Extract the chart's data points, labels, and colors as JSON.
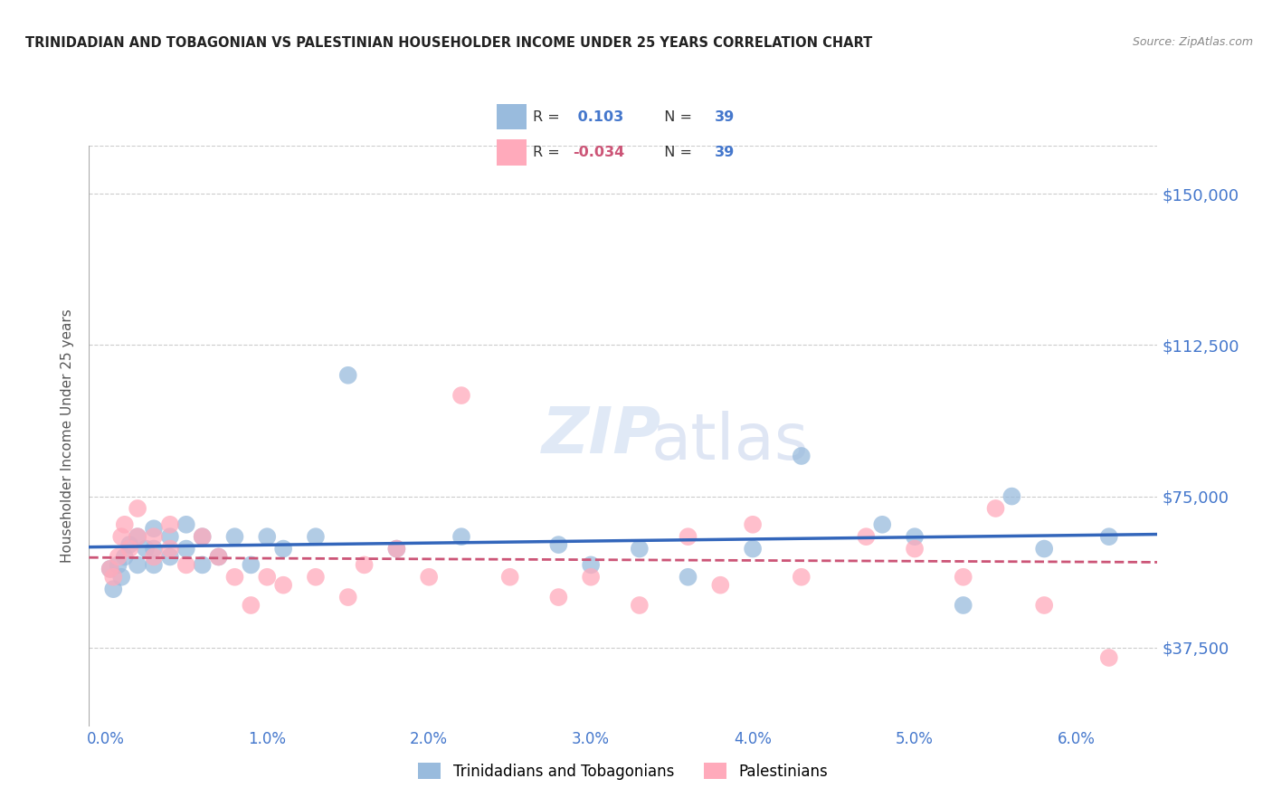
{
  "title": "TRINIDADIAN AND TOBAGONIAN VS PALESTINIAN HOUSEHOLDER INCOME UNDER 25 YEARS CORRELATION CHART",
  "source": "Source: ZipAtlas.com",
  "ylabel": "Householder Income Under 25 years",
  "xlim": [
    -0.001,
    0.065
  ],
  "ylim": [
    18000,
    162000
  ],
  "yticks": [
    37500,
    75000,
    112500,
    150000
  ],
  "ytick_labels": [
    "$37,500",
    "$75,000",
    "$112,500",
    "$150,000"
  ],
  "xticks": [
    0.0,
    0.01,
    0.02,
    0.03,
    0.04,
    0.05,
    0.06
  ],
  "xtick_labels": [
    "0.0%",
    "1.0%",
    "2.0%",
    "3.0%",
    "4.0%",
    "5.0%",
    "6.0%"
  ],
  "watermark_zip": "ZIP",
  "watermark_atlas": "atlas",
  "legend_R1": "0.103",
  "legend_R2": "-0.034",
  "legend_N": "39",
  "legend_label1": "Trinidadians and Tobagonians",
  "legend_label2": "Palestinians",
  "color_blue": "#99BBDD",
  "color_pink": "#FFAABB",
  "line_color_blue": "#3366BB",
  "line_color_pink": "#CC5577",
  "title_color": "#222222",
  "axis_label_color": "#4477CC",
  "ylabel_color": "#555555",
  "grid_color": "#CCCCCC",
  "R1": 0.103,
  "R2": -0.034,
  "N": 39,
  "blue_x": [
    0.0003,
    0.0005,
    0.0008,
    0.001,
    0.0012,
    0.0015,
    0.002,
    0.002,
    0.0025,
    0.003,
    0.003,
    0.003,
    0.004,
    0.004,
    0.005,
    0.005,
    0.006,
    0.006,
    0.007,
    0.008,
    0.009,
    0.01,
    0.011,
    0.013,
    0.015,
    0.018,
    0.022,
    0.028,
    0.03,
    0.033,
    0.036,
    0.04,
    0.043,
    0.048,
    0.05,
    0.053,
    0.056,
    0.058,
    0.062
  ],
  "blue_y": [
    57000,
    52000,
    58000,
    55000,
    60000,
    63000,
    65000,
    58000,
    62000,
    67000,
    62000,
    58000,
    65000,
    60000,
    68000,
    62000,
    65000,
    58000,
    60000,
    65000,
    58000,
    65000,
    62000,
    65000,
    105000,
    62000,
    65000,
    63000,
    58000,
    62000,
    55000,
    62000,
    85000,
    68000,
    65000,
    48000,
    75000,
    62000,
    65000
  ],
  "pink_x": [
    0.0003,
    0.0005,
    0.0008,
    0.001,
    0.0012,
    0.0015,
    0.002,
    0.002,
    0.003,
    0.003,
    0.004,
    0.004,
    0.005,
    0.006,
    0.007,
    0.008,
    0.009,
    0.01,
    0.011,
    0.013,
    0.015,
    0.016,
    0.018,
    0.02,
    0.022,
    0.025,
    0.028,
    0.03,
    0.033,
    0.036,
    0.038,
    0.04,
    0.043,
    0.047,
    0.05,
    0.053,
    0.055,
    0.058,
    0.062
  ],
  "pink_y": [
    57000,
    55000,
    60000,
    65000,
    68000,
    62000,
    65000,
    72000,
    65000,
    60000,
    68000,
    62000,
    58000,
    65000,
    60000,
    55000,
    48000,
    55000,
    53000,
    55000,
    50000,
    58000,
    62000,
    55000,
    100000,
    55000,
    50000,
    55000,
    48000,
    65000,
    53000,
    68000,
    55000,
    65000,
    62000,
    55000,
    72000,
    48000,
    35000
  ]
}
